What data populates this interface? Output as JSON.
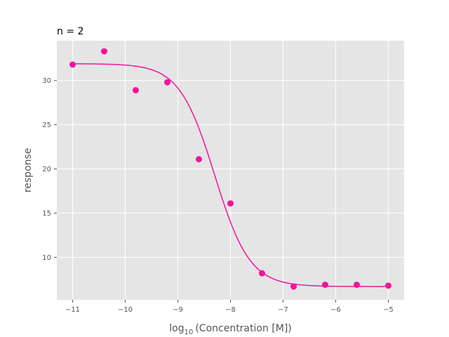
{
  "chart_data": {
    "type": "scatter",
    "title": "n = 2",
    "xlabel": {
      "prefix": "log",
      "subscript": "10",
      "suffix": "(Concentration [M])"
    },
    "ylabel": "response",
    "xlim": [
      -11.3,
      -4.7
    ],
    "ylim": [
      5.2,
      34.5
    ],
    "xticks": [
      -11,
      -10,
      -9,
      -8,
      -7,
      -6,
      -5
    ],
    "yticks": [
      10,
      15,
      20,
      25,
      30
    ],
    "grid": true,
    "background": "#e5e5e5",
    "color": "#f0169b",
    "points": {
      "x": [
        -11,
        -10.4,
        -9.8,
        -9.2,
        -8.6,
        -8.0,
        -7.4,
        -6.8,
        -6.2,
        -5.6,
        -5.0
      ],
      "y": [
        31.8,
        33.3,
        28.9,
        29.8,
        21.1,
        16.1,
        8.2,
        6.7,
        6.9,
        6.9,
        6.8
      ]
    },
    "fit": {
      "model": "four-parameter logistic",
      "top": 31.9,
      "bottom": 6.7,
      "log_ec50": -8.3,
      "hill_slope": 1.3
    }
  }
}
